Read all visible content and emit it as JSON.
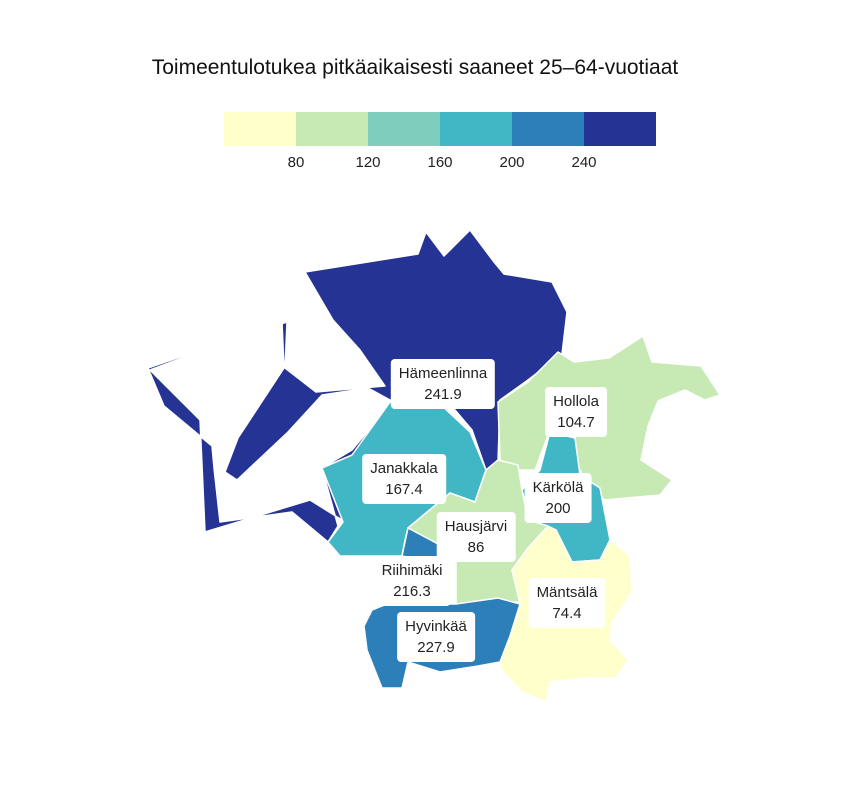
{
  "title": "Toimeentulotukea pitkäaikaisesti saaneet 25–64-vuotiaat",
  "legend": {
    "colors": [
      "#ffffcc",
      "#c7e9b4",
      "#7fcdbb",
      "#41b6c4",
      "#2c7fb8",
      "#253494"
    ],
    "ticks": [
      "80",
      "120",
      "160",
      "200",
      "240"
    ]
  },
  "regions": [
    {
      "name": "Hämeenlinna",
      "value": "241.9",
      "color": "#253494"
    },
    {
      "name": "Hollola",
      "value": "104.7",
      "color": "#c7e9b4"
    },
    {
      "name": "Janakkala",
      "value": "167.4",
      "color": "#41b6c4"
    },
    {
      "name": "Kärkölä",
      "value": "200",
      "color": "#41b6c4"
    },
    {
      "name": "Hausjärvi",
      "value": "86",
      "color": "#c7e9b4"
    },
    {
      "name": "Riihimäki",
      "value": "216.3",
      "color": "#2c7fb8"
    },
    {
      "name": "Mäntsälä",
      "value": "74.4",
      "color": "#ffffcc"
    },
    {
      "name": "Hyvinkää",
      "value": "227.9",
      "color": "#2c7fb8"
    }
  ]
}
